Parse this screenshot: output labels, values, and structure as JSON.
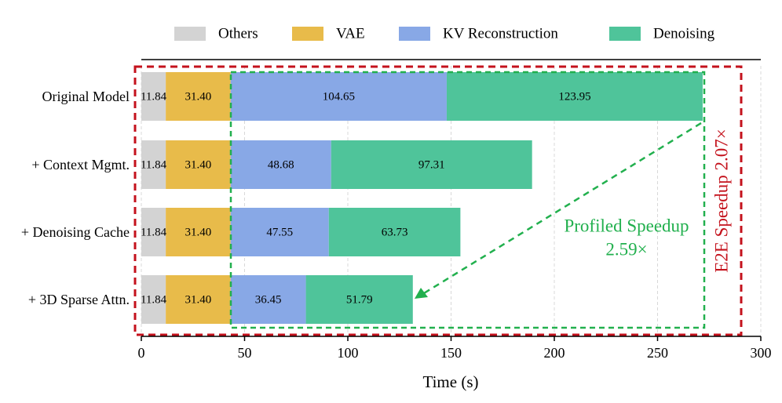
{
  "chart_data": {
    "type": "stacked-barh",
    "categories": [
      "Original Model",
      "+ Context Mgmt.",
      "+ Denoising Cache",
      "+ 3D Sparse Attn."
    ],
    "series": [
      {
        "name": "Others",
        "color": "#d3d3d3",
        "values": [
          11.84,
          11.84,
          11.84,
          11.84
        ]
      },
      {
        "name": "VAE",
        "color": "#e8bb4a",
        "values": [
          31.4,
          31.4,
          31.4,
          31.4
        ]
      },
      {
        "name": "KV Reconstruction",
        "color": "#88a8e6",
        "values": [
          104.65,
          48.68,
          47.55,
          36.45
        ]
      },
      {
        "name": "Denoising",
        "color": "#4fc49a",
        "values": [
          123.95,
          97.31,
          63.73,
          51.79
        ]
      }
    ],
    "value_labels": [
      [
        "11.84",
        "11.84",
        "11.84",
        "11.84"
      ],
      [
        "31.40",
        "31.40",
        "31.40",
        "31.40"
      ],
      [
        "104.65",
        "48.68",
        "47.55",
        "36.45"
      ],
      [
        "123.95",
        "97.31",
        "63.73",
        "51.79"
      ]
    ],
    "xlabel": "Time (s)",
    "xlim": [
      0,
      300
    ],
    "xticks": [
      0,
      50,
      100,
      150,
      200,
      250,
      300
    ],
    "grid": true,
    "annotations": [
      "Profiled Speedup",
      "2.59×",
      "E2E Speedup 2.07×"
    ]
  }
}
